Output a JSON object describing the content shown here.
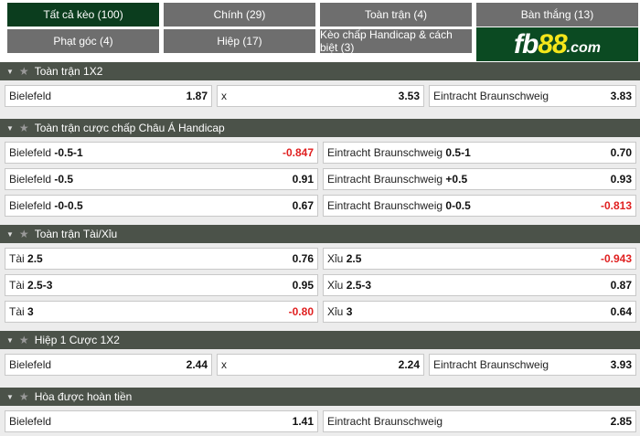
{
  "tabs": [
    {
      "label": "Tất cả kèo (100)",
      "active": true
    },
    {
      "label": "Chính (29)"
    },
    {
      "label": "Toàn trận (4)"
    },
    {
      "label": "Bàn thắng (13)"
    },
    {
      "label": "Phạt góc (4)"
    },
    {
      "label": "Hiệp (17)"
    },
    {
      "label": "Kèo chấp Handicap & cách biệt (3)"
    }
  ],
  "logo": {
    "text": "fb88.com"
  },
  "colors": {
    "header": "#4b5249",
    "active_tab": "#0b3d1e",
    "tab": "#6e6e6e",
    "negative": "#e02020"
  },
  "sections": [
    {
      "title": "Toàn trận 1X2",
      "rows": [
        [
          {
            "name": "Bielefeld",
            "line": "",
            "odd": "1.87"
          },
          {
            "name": "x",
            "line": "",
            "odd": "3.53"
          },
          {
            "name": "Eintracht Braunschweig",
            "line": "",
            "odd": "3.83"
          }
        ]
      ]
    },
    {
      "title": "Toàn trận cược chấp Châu Á Handicap",
      "rows": [
        [
          {
            "name": "Bielefeld",
            "line": "-0.5-1",
            "odd": "-0.847"
          },
          {
            "name": "Eintracht Braunschweig",
            "line": "0.5-1",
            "odd": "0.70"
          }
        ],
        [
          {
            "name": "Bielefeld",
            "line": "-0.5",
            "odd": "0.91"
          },
          {
            "name": "Eintracht Braunschweig",
            "line": "+0.5",
            "odd": "0.93"
          }
        ],
        [
          {
            "name": "Bielefeld",
            "line": "-0-0.5",
            "odd": "0.67"
          },
          {
            "name": "Eintracht Braunschweig",
            "line": "0-0.5",
            "odd": "-0.813"
          }
        ]
      ]
    },
    {
      "title": "Toàn trận Tài/Xỉu",
      "rows": [
        [
          {
            "name": "Tài",
            "line": "2.5",
            "odd": "0.76"
          },
          {
            "name": "Xỉu",
            "line": "2.5",
            "odd": "-0.943"
          }
        ],
        [
          {
            "name": "Tài",
            "line": "2.5-3",
            "odd": "0.95"
          },
          {
            "name": "Xỉu",
            "line": "2.5-3",
            "odd": "0.87"
          }
        ],
        [
          {
            "name": "Tài",
            "line": "3",
            "odd": "-0.80"
          },
          {
            "name": "Xỉu",
            "line": "3",
            "odd": "0.64"
          }
        ]
      ]
    },
    {
      "title": "Hiệp 1 Cược 1X2",
      "rows": [
        [
          {
            "name": "Bielefeld",
            "line": "",
            "odd": "2.44"
          },
          {
            "name": "x",
            "line": "",
            "odd": "2.24"
          },
          {
            "name": "Eintracht Braunschweig",
            "line": "",
            "odd": "3.93"
          }
        ]
      ]
    },
    {
      "title": "Hòa được hoàn tiền",
      "rows": [
        [
          {
            "name": "Bielefeld",
            "line": "",
            "odd": "1.41"
          },
          {
            "name": "Eintracht Braunschweig",
            "line": "",
            "odd": "2.85"
          }
        ]
      ]
    }
  ]
}
